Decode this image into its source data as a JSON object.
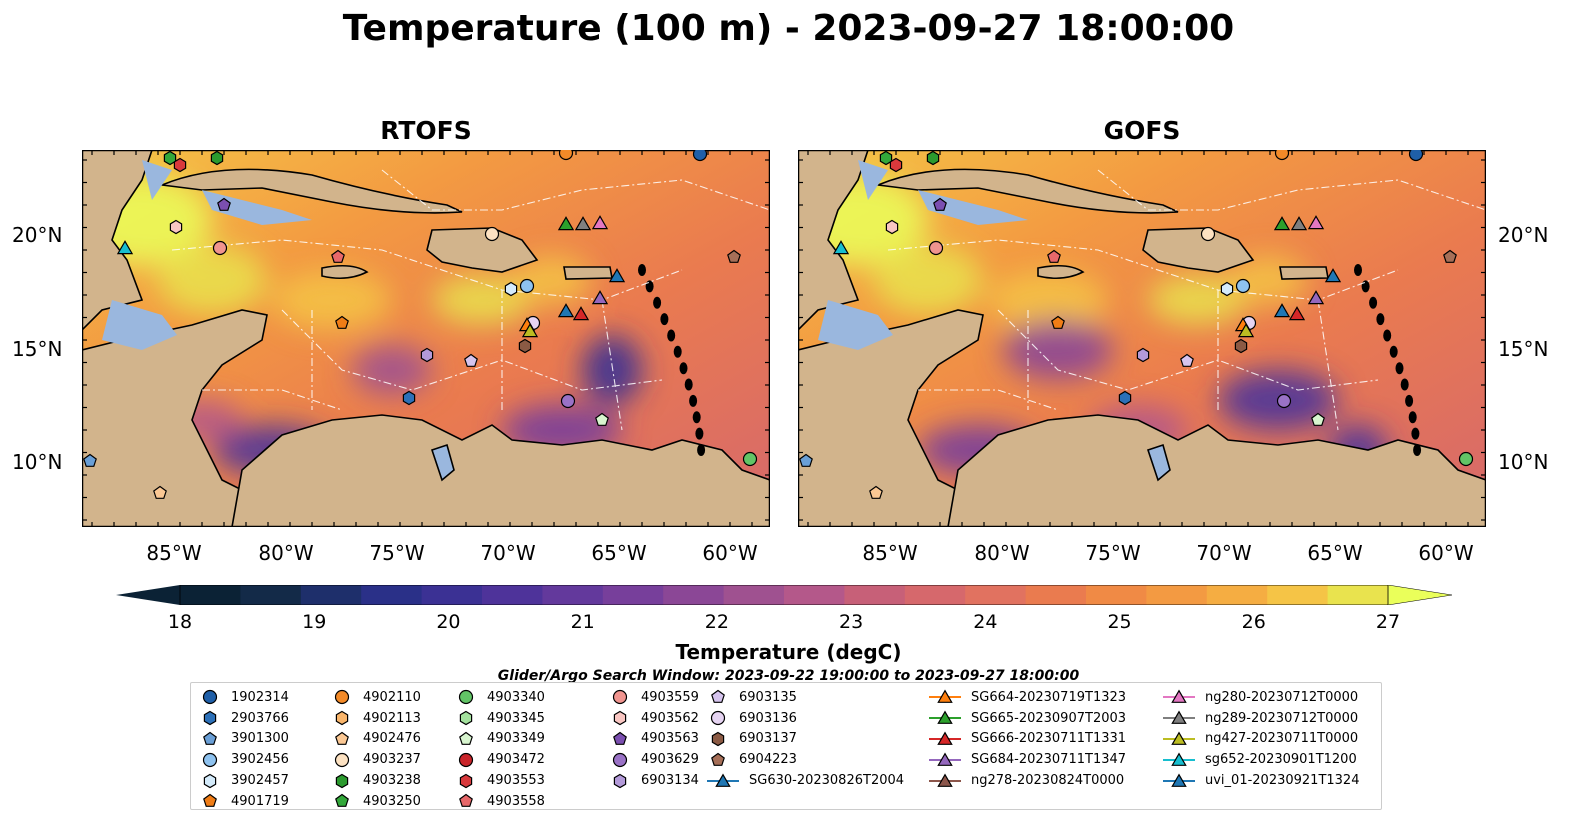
{
  "title": "Temperature (100 m) - 2023-09-27 18:00:00",
  "panels": [
    {
      "name": "RTOFS"
    },
    {
      "name": "GOFS"
    }
  ],
  "lat_labels": [
    "20°N",
    "15°N",
    "10°N"
  ],
  "lon_labels": [
    "85°W",
    "80°W",
    "75°W",
    "70°W",
    "65°W",
    "60°W"
  ],
  "colorbar": {
    "label": "Temperature (degC)",
    "ticks": [
      "18",
      "19",
      "20",
      "21",
      "22",
      "23",
      "24",
      "25",
      "26",
      "27"
    ],
    "min": 18,
    "max": 27,
    "step": 0.5,
    "colors": [
      "#0b2235",
      "#132a48",
      "#1e2f6b",
      "#2a3088",
      "#3b3194",
      "#4e339a",
      "#63399c",
      "#773f9b",
      "#8b4796",
      "#9f5190",
      "#b4588a",
      "#c76078",
      "#d6686c",
      "#e17260",
      "#ea7b4f",
      "#f08a45",
      "#f39a42",
      "#f5ad42",
      "#f5c446",
      "#e9e34e"
    ],
    "under_color": "#0b2235",
    "over_color": "#eaff5a"
  },
  "search_window": "Glider/Argo Search Window: 2023-09-22 19:00:00 to 2023-09-27 18:00:00",
  "map_colors": {
    "land": "#d2b48c",
    "shallow": "#9ab7de",
    "border": "#000000"
  },
  "legend": [
    [
      {
        "label": "1902314",
        "marker": "circle",
        "color": "#1f5fa8"
      },
      {
        "label": "2903766",
        "marker": "hexagon",
        "color": "#2c70b8"
      },
      {
        "label": "3901300",
        "marker": "pentagon",
        "color": "#6a9fd6"
      },
      {
        "label": "3902456",
        "marker": "circle",
        "color": "#8ec2ef"
      },
      {
        "label": "3902457",
        "marker": "hexagon",
        "color": "#d4ebfb"
      },
      {
        "label": "4901719",
        "marker": "pentagon",
        "color": "#f07d16"
      }
    ],
    [
      {
        "label": "4902110",
        "marker": "circle",
        "color": "#f38a28"
      },
      {
        "label": "4902113",
        "marker": "hexagon",
        "color": "#f9b56b"
      },
      {
        "label": "4902476",
        "marker": "pentagon",
        "color": "#fbc894"
      },
      {
        "label": "4903237",
        "marker": "circle",
        "color": "#fde2c2"
      },
      {
        "label": "4903238",
        "marker": "hexagon",
        "color": "#2b9a2e"
      },
      {
        "label": "4903250",
        "marker": "pentagon",
        "color": "#33a83a"
      }
    ],
    [
      {
        "label": "4903340",
        "marker": "circle",
        "color": "#62c466"
      },
      {
        "label": "4903345",
        "marker": "hexagon",
        "color": "#a4e29e"
      },
      {
        "label": "4903349",
        "marker": "pentagon",
        "color": "#d8f5cf"
      },
      {
        "label": "4903472",
        "marker": "circle",
        "color": "#c9242a"
      },
      {
        "label": "4903553",
        "marker": "hexagon",
        "color": "#d8393c"
      },
      {
        "label": "4903558",
        "marker": "pentagon",
        "color": "#e8686a"
      }
    ],
    [
      {
        "label": "4903559",
        "marker": "circle",
        "color": "#f0948f"
      },
      {
        "label": "4903562",
        "marker": "hexagon",
        "color": "#f9c6c2"
      },
      {
        "label": "4903563",
        "marker": "pentagon",
        "color": "#7b4fb0"
      },
      {
        "label": "4903629",
        "marker": "circle",
        "color": "#9a72c6"
      },
      {
        "label": "6903134",
        "marker": "hexagon",
        "color": "#b39ad9"
      }
    ],
    [
      {
        "label": "6903135",
        "marker": "pentagon",
        "color": "#d6c4ee"
      },
      {
        "label": "6903136",
        "marker": "circle",
        "color": "#e6d4f2"
      },
      {
        "label": "6903137",
        "marker": "hexagon",
        "color": "#8b5a44"
      },
      {
        "label": "6904223",
        "marker": "pentagon",
        "color": "#a66f58"
      },
      {
        "label": "SG630-20230826T2004",
        "marker": "triangle-line",
        "color": "#1f77b4"
      }
    ],
    [
      {
        "label": "SG664-20230719T1323",
        "marker": "triangle-line",
        "color": "#ff7f0e"
      },
      {
        "label": "SG665-20230907T2003",
        "marker": "triangle-line",
        "color": "#2ca02c"
      },
      {
        "label": "SG666-20230711T1331",
        "marker": "triangle-line",
        "color": "#d62728"
      },
      {
        "label": "SG684-20230711T1347",
        "marker": "triangle-line",
        "color": "#9467bd"
      },
      {
        "label": "ng278-20230824T0000",
        "marker": "triangle-line",
        "color": "#8c564b"
      }
    ],
    [
      {
        "label": "ng280-20230712T0000",
        "marker": "triangle-line",
        "color": "#e377c2"
      },
      {
        "label": "ng289-20230712T0000",
        "marker": "triangle-line",
        "color": "#7f7f7f"
      },
      {
        "label": "ng427-20230711T0000",
        "marker": "triangle-line",
        "color": "#bcbd22"
      },
      {
        "label": "sg652-20230901T1200",
        "marker": "triangle-line",
        "color": "#17becf"
      },
      {
        "label": "uvi_01-20230921T1324",
        "marker": "triangle-line",
        "color": "#1f77b4"
      }
    ]
  ]
}
